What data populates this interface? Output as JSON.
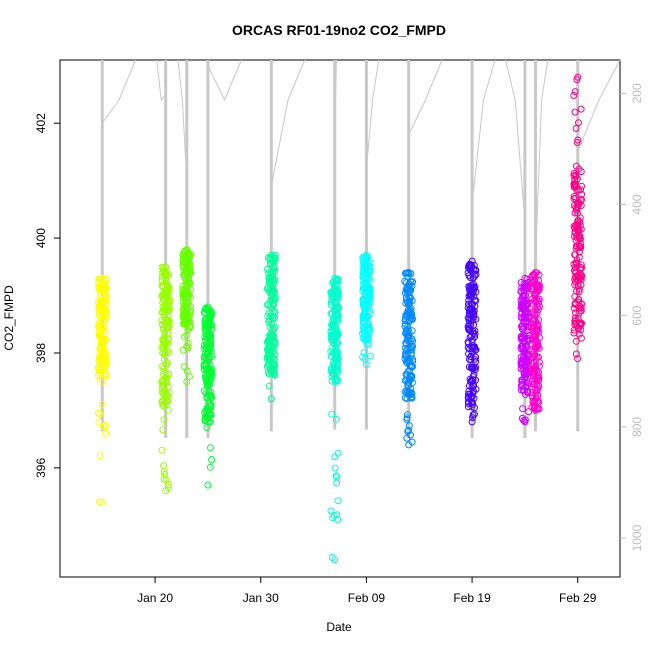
{
  "chart_data": {
    "type": "scatter",
    "title": "ORCAS RF01-19no2 CO2_FMPD",
    "xlabel": "Date",
    "ylabel": "CO2_FMPD",
    "x_ticks": [
      "Jan 20",
      "Jan 30",
      "Feb 09",
      "Feb 19",
      "Feb 29"
    ],
    "y_ticks": [
      396,
      398,
      400,
      402
    ],
    "y2_ticks": [
      200,
      400,
      600,
      800,
      1000
    ],
    "xlim": [
      "2016-01-11",
      "2016-03-04"
    ],
    "ylim": [
      394.1,
      403.1
    ],
    "y2lim": [
      1070,
      140
    ],
    "grid": false,
    "flights": [
      {
        "date": "2016-01-15",
        "color": "#ffff00",
        "co2_min": 395.4,
        "co2_max": 399.3,
        "dense_min": 397.6,
        "dense_max": 399.3,
        "pressure_min": 140,
        "pressure_max": 808,
        "gray_start": 402.0
      },
      {
        "date": "2016-01-21",
        "color": "#99ff00",
        "co2_min": 395.6,
        "co2_max": 399.5,
        "dense_min": 397.0,
        "dense_max": 399.5,
        "pressure_min": 140,
        "pressure_max": 820,
        "gray_start": 402.5
      },
      {
        "date": "2016-01-23",
        "color": "#66ff00",
        "co2_min": 397.5,
        "co2_max": 399.8,
        "dense_min": 398.5,
        "dense_max": 399.8,
        "pressure_min": 140,
        "pressure_max": 820,
        "gray_start": 401.0
      },
      {
        "date": "2016-01-25",
        "color": "#00ff33",
        "co2_min": 395.7,
        "co2_max": 398.8,
        "dense_min": 396.8,
        "dense_max": 398.8,
        "pressure_min": 140,
        "pressure_max": 820,
        "gray_start": 403.0
      },
      {
        "date": "2016-01-31",
        "color": "#00ff99",
        "co2_min": 397.2,
        "co2_max": 399.7,
        "dense_min": 397.6,
        "dense_max": 399.7,
        "pressure_min": 140,
        "pressure_max": 808,
        "gray_start": 400.9
      },
      {
        "date": "2016-02-06",
        "color": "#00ffcc",
        "co2_min": 394.4,
        "co2_max": 399.3,
        "dense_min": 397.5,
        "dense_max": 399.3,
        "pressure_min": 140,
        "pressure_max": 805,
        "gray_start": 401.3
      },
      {
        "date": "2016-02-09",
        "color": "#00ffff",
        "co2_min": 397.8,
        "co2_max": 399.7,
        "dense_min": 398.2,
        "dense_max": 399.7,
        "pressure_min": 140,
        "pressure_max": 805,
        "gray_start": 401.2
      },
      {
        "date": "2016-02-13",
        "color": "#0088ff",
        "co2_min": 396.4,
        "co2_max": 399.4,
        "dense_min": 397.2,
        "dense_max": 399.4,
        "pressure_min": 140,
        "pressure_max": 820,
        "gray_start": 401.8
      },
      {
        "date": "2016-02-19",
        "color": "#4400ff",
        "co2_min": 396.8,
        "co2_max": 399.6,
        "dense_min": 397.0,
        "dense_max": 399.6,
        "pressure_min": 140,
        "pressure_max": 820,
        "gray_start": 400.6
      },
      {
        "date": "2016-02-24",
        "color": "#cc00ff",
        "co2_min": 396.8,
        "co2_max": 399.3,
        "dense_min": 397.3,
        "dense_max": 399.3,
        "pressure_min": 140,
        "pressure_max": 820,
        "gray_start": 400.3
      },
      {
        "date": "2016-02-25",
        "color": "#ff00cc",
        "co2_min": 397.0,
        "co2_max": 399.4,
        "dense_min": 397.0,
        "dense_max": 399.4,
        "pressure_min": 140,
        "pressure_max": 808,
        "gray_start": 399.6
      },
      {
        "date": "2016-02-29",
        "color": "#ff0088",
        "co2_min": 397.9,
        "co2_max": 402.8,
        "dense_min": 398.2,
        "dense_max": 401.2,
        "pressure_min": 140,
        "pressure_max": 808,
        "gray_start": 401.5
      }
    ]
  }
}
